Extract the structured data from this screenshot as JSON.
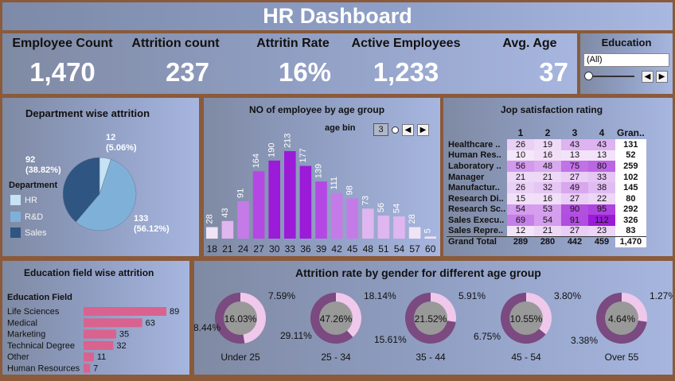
{
  "title": "HR Dashboard",
  "kpis": [
    {
      "label": "Employee Count",
      "value": "1,470"
    },
    {
      "label": "Attrition count",
      "value": "237"
    },
    {
      "label": "Attritin Rate",
      "value": "16%"
    },
    {
      "label": "Active Employees",
      "value": "1,233"
    },
    {
      "label": "Avg. Age",
      "value": "37"
    }
  ],
  "education_filter": {
    "label": "Education",
    "selected": "(All)"
  },
  "colors": {
    "hr": "#c6e2f5",
    "rd": "#7fb0d8",
    "sales": "#2f5582",
    "bar_high": "#9b1bd8",
    "bar_mid": "#c47be8",
    "bar_low": "#f0e4f6",
    "edu_bar": "#d9628f",
    "donut_outer": "#7a4a80",
    "donut_light": "#f0c8ec",
    "donut_center": "#999999"
  },
  "dept": {
    "title": "Department wise attrition",
    "legend_title": "Department",
    "legend": [
      "HR",
      "R&D",
      "Sales"
    ],
    "labels": {
      "hr": [
        "12",
        "(5.06%)"
      ],
      "sales": [
        "92",
        "(38.82%)"
      ],
      "rd": [
        "133",
        "(56.12%)"
      ]
    }
  },
  "age": {
    "title": "NO of employee by age group",
    "bin_label": "age bin",
    "bin_value": "3"
  },
  "job": {
    "title": "Jop satisfaction rating",
    "headers": [
      "1",
      "2",
      "3",
      "4",
      "Gran.."
    ],
    "rows": [
      {
        "role": "Healthcare ..",
        "v": [
          "26",
          "19",
          "43",
          "43"
        ],
        "total": "131"
      },
      {
        "role": "Human Res..",
        "v": [
          "10",
          "16",
          "13",
          "13"
        ],
        "total": "52"
      },
      {
        "role": "Laboratory ..",
        "v": [
          "56",
          "48",
          "75",
          "80"
        ],
        "total": "259"
      },
      {
        "role": "Manager",
        "v": [
          "21",
          "21",
          "27",
          "33"
        ],
        "total": "102"
      },
      {
        "role": "Manufactur..",
        "v": [
          "26",
          "32",
          "49",
          "38"
        ],
        "total": "145"
      },
      {
        "role": "Research Di..",
        "v": [
          "15",
          "16",
          "27",
          "22"
        ],
        "total": "80"
      },
      {
        "role": "Research Sc..",
        "v": [
          "54",
          "53",
          "90",
          "95"
        ],
        "total": "292"
      },
      {
        "role": "Sales Execu..",
        "v": [
          "69",
          "54",
          "91",
          "112"
        ],
        "total": "326"
      },
      {
        "role": "Sales Repre..",
        "v": [
          "12",
          "21",
          "27",
          "23"
        ],
        "total": "83"
      }
    ],
    "grand_total": {
      "role": "Grand Total",
      "v": [
        "289",
        "280",
        "442",
        "459"
      ],
      "total": "1,470"
    }
  },
  "edu_field": {
    "title": "Education field wise attrition",
    "header": "Education Field"
  },
  "gender": {
    "title": "Attrition rate by gender for different age group"
  },
  "chart_data": [
    {
      "type": "pie",
      "title": "Department wise attrition",
      "categories": [
        "HR",
        "R&D",
        "Sales"
      ],
      "values": [
        12,
        133,
        92
      ],
      "percent": [
        5.06,
        56.12,
        38.82
      ]
    },
    {
      "type": "bar",
      "title": "NO of employee by age group",
      "categories": [
        "18",
        "21",
        "24",
        "27",
        "30",
        "33",
        "36",
        "39",
        "42",
        "45",
        "48",
        "51",
        "54",
        "57",
        "60"
      ],
      "values": [
        28,
        43,
        91,
        164,
        190,
        213,
        177,
        139,
        111,
        98,
        73,
        56,
        54,
        28,
        5
      ]
    },
    {
      "type": "bar",
      "title": "Education field wise attrition",
      "categories": [
        "Life Sciences",
        "Medical",
        "Marketing",
        "Technical Degree",
        "Other",
        "Human Resources"
      ],
      "values": [
        89,
        63,
        35,
        32,
        11,
        7
      ]
    },
    {
      "type": "pie",
      "title": "Attrition rate by gender for different age group",
      "groups": [
        {
          "name": "Under 25",
          "center": "16.03%",
          "light": "7.59%",
          "dark": "8.44%",
          "light_value": 7.59,
          "dark_value": 8.44
        },
        {
          "name": "25 - 34",
          "center": "47.26%",
          "light": "18.14%",
          "dark": "29.11%",
          "light_value": 18.14,
          "dark_value": 29.11
        },
        {
          "name": "35 - 44",
          "center": "21.52%",
          "light": "5.91%",
          "dark": "15.61%",
          "light_value": 5.91,
          "dark_value": 15.61
        },
        {
          "name": "45 - 54",
          "center": "10.55%",
          "light": "3.80%",
          "dark": "6.75%",
          "light_value": 3.8,
          "dark_value": 6.75
        },
        {
          "name": "Over 55",
          "center": "4.64%",
          "light": "1.27%",
          "dark": "3.38%",
          "light_value": 1.27,
          "dark_value": 3.38
        }
      ]
    }
  ]
}
